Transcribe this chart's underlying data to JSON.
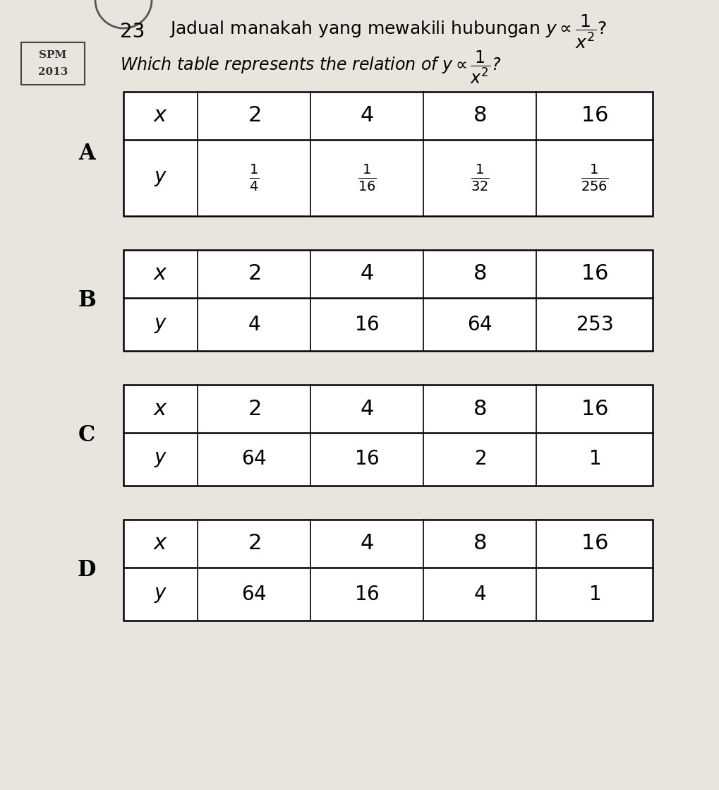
{
  "background_color": "#e8e4de",
  "question_number": "23",
  "tables": [
    {
      "label": "A",
      "x_values": [
        "x",
        "2",
        "4",
        "8",
        "16"
      ],
      "y_values": [
        "y",
        "\\frac{1}{4}",
        "\\frac{1}{16}",
        "\\frac{1}{32}",
        "\\frac{1}{256}"
      ]
    },
    {
      "label": "B",
      "x_values": [
        "x",
        "2",
        "4",
        "8",
        "16"
      ],
      "y_values": [
        "y",
        "4",
        "16",
        "64",
        "253"
      ]
    },
    {
      "label": "C",
      "x_values": [
        "x",
        "2",
        "4",
        "8",
        "16"
      ],
      "y_values": [
        "y",
        "64",
        "16",
        "2",
        "1"
      ]
    },
    {
      "label": "D",
      "x_values": [
        "x",
        "2",
        "4",
        "8",
        "16"
      ],
      "y_values": [
        "y",
        "64",
        "16",
        "4",
        "1"
      ]
    }
  ],
  "malay_text": "Jadual manakah yang mewakili hubungan ",
  "english_text": "Which table represents the relation of ",
  "formula": "$y \\propto \\dfrac{1}{x^2}$?",
  "badge_top_text": "SPM",
  "badge_bot_text": "2013",
  "circle_partial": true
}
